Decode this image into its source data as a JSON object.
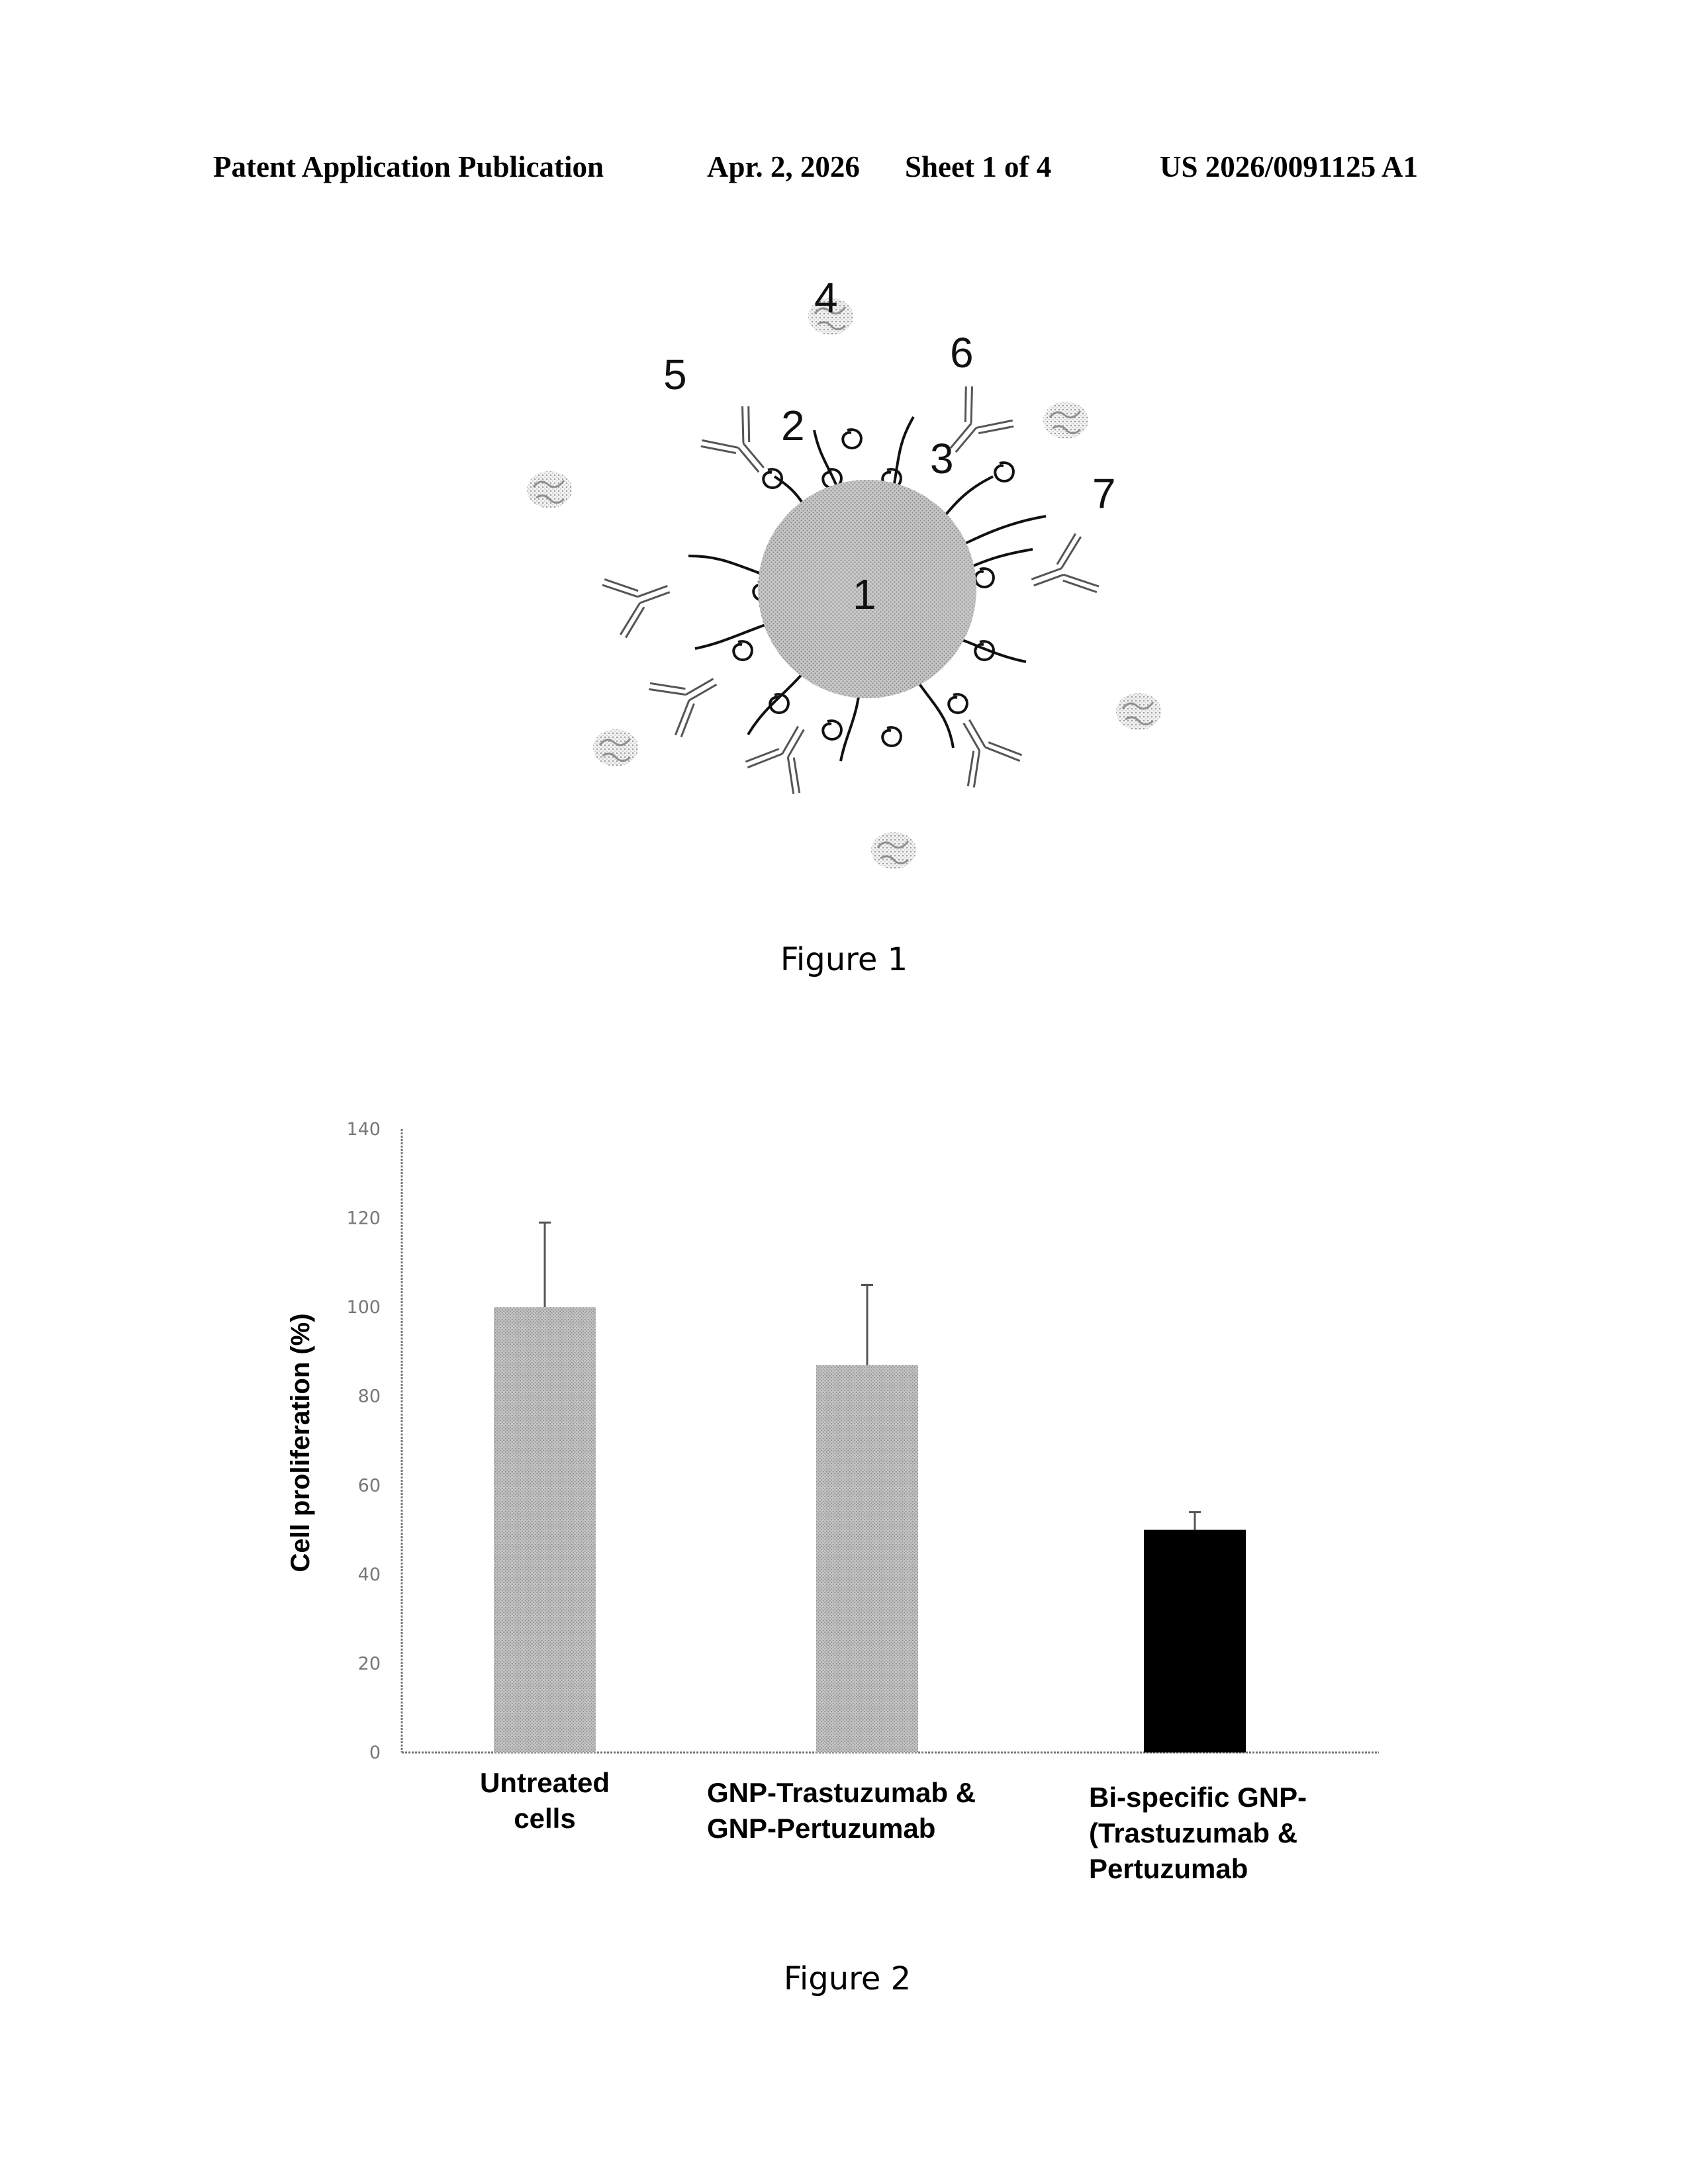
{
  "header": {
    "publication": "Patent Application Publication",
    "date": "Apr. 2, 2026",
    "sheet": "Sheet 1 of 4",
    "number": "US 2026/0091125 A1"
  },
  "figure1": {
    "caption": "Figure 1",
    "labels": [
      "1",
      "2",
      "3",
      "4",
      "5",
      "6",
      "7"
    ]
  },
  "figure2": {
    "caption": "Figure 2"
  },
  "chart_data": {
    "type": "bar",
    "categories": [
      [
        "Untreated",
        "cells"
      ],
      [
        "GNP-Trastuzumab &",
        "GNP-Pertuzumab"
      ],
      [
        "Bi-specific GNP-",
        "(Trastuzumab &",
        "Pertuzumab"
      ]
    ],
    "values": [
      100,
      87,
      50
    ],
    "error": [
      19,
      18,
      4
    ],
    "bar_colors": [
      "#b5b5b5",
      "#b5b5b5",
      "#000000"
    ],
    "ylabel": "Cell proliferation (%)",
    "xlabel": "",
    "ylim": [
      0,
      140
    ],
    "yticks": [
      0,
      20,
      40,
      60,
      80,
      100,
      120,
      140
    ],
    "grid": false,
    "legend": "none"
  }
}
